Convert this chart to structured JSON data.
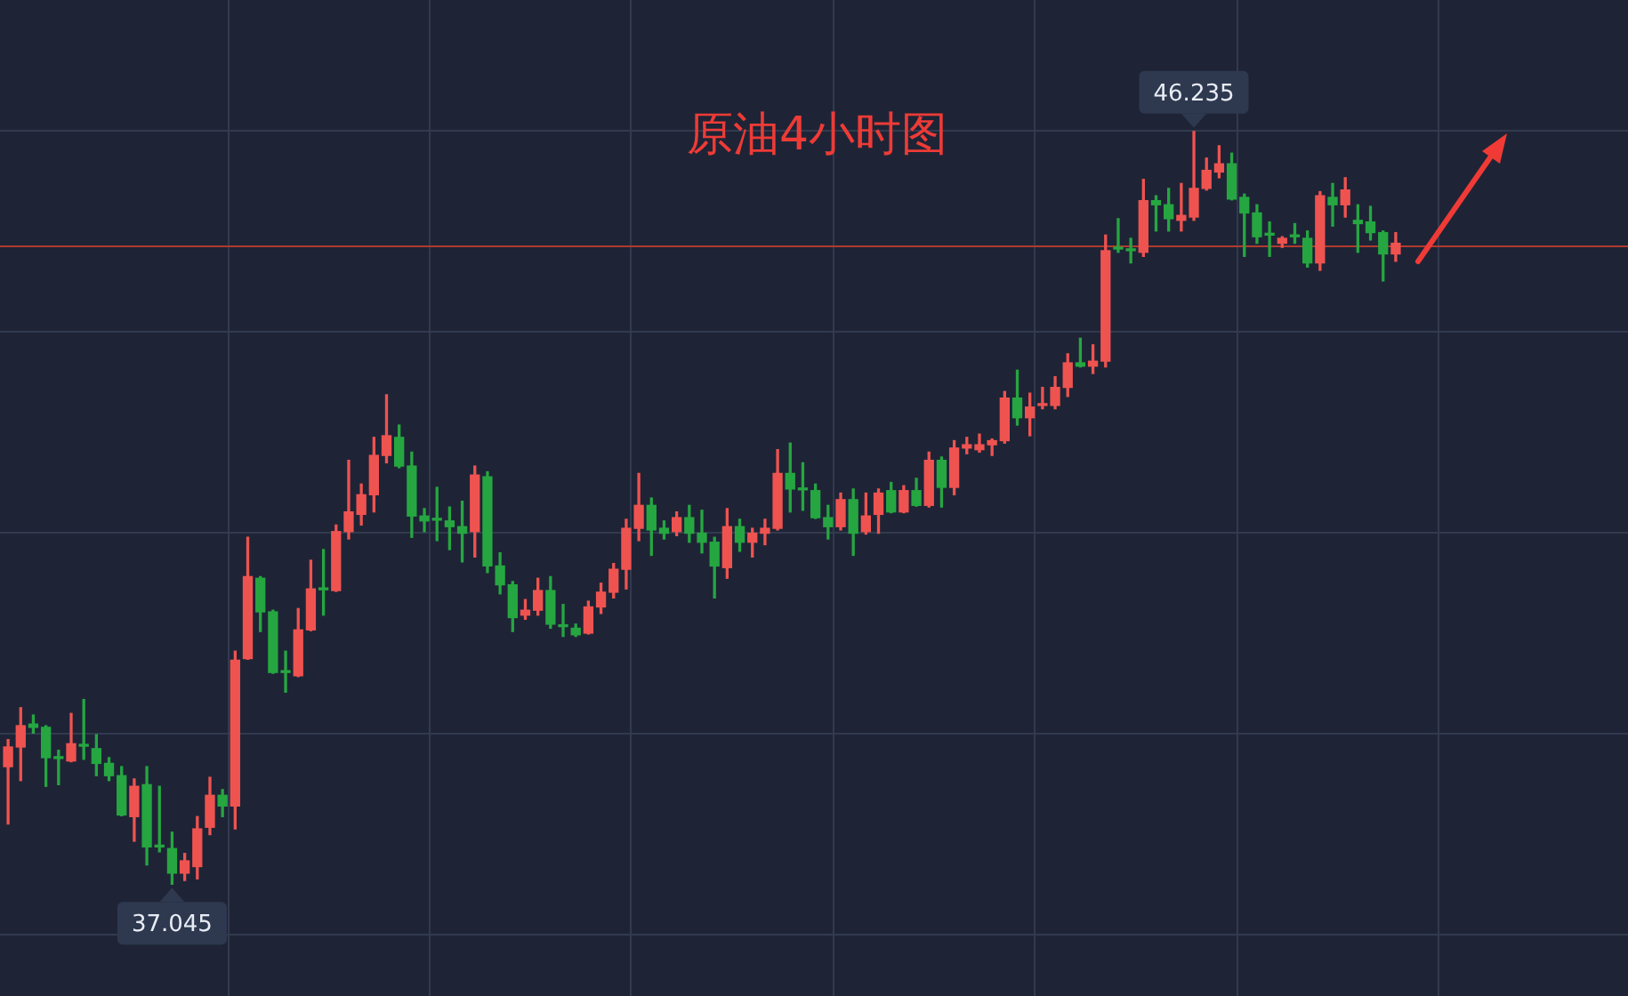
{
  "chart_data": {
    "type": "candlestick",
    "title": "原油4小时图",
    "categories": [
      null,
      null,
      null,
      null,
      null,
      null,
      null,
      null,
      null,
      null,
      null,
      null,
      null,
      null,
      null,
      null,
      null,
      null,
      null,
      null,
      null,
      null,
      null,
      null,
      null,
      null,
      null,
      null,
      null,
      null,
      null,
      null,
      null,
      null,
      null,
      null,
      null,
      null,
      null,
      null,
      null,
      null,
      null,
      null,
      null,
      null,
      null,
      null,
      null,
      null,
      null,
      null,
      null,
      null,
      null,
      null,
      null,
      null,
      null,
      null,
      null,
      null,
      null,
      null,
      null,
      null,
      null,
      null,
      null,
      null,
      null,
      null,
      null,
      null,
      null,
      null,
      null,
      null,
      null,
      null,
      null,
      null,
      null,
      null,
      null,
      null,
      null,
      null,
      null,
      null,
      null,
      null,
      null,
      null,
      null,
      null,
      null,
      null,
      null,
      null,
      null,
      null,
      null,
      null,
      null,
      null,
      null,
      null,
      null,
      null,
      null
    ],
    "ohlc": [
      [
        38.48,
        38.81,
        37.78,
        38.72
      ],
      [
        38.72,
        39.2,
        38.31,
        38.98
      ],
      [
        39.0,
        39.11,
        38.89,
        38.96
      ],
      [
        38.96,
        38.98,
        38.24,
        38.59
      ],
      [
        38.59,
        38.68,
        38.26,
        38.58
      ],
      [
        38.55,
        39.13,
        38.54,
        38.76
      ],
      [
        38.74,
        39.3,
        38.57,
        38.73
      ],
      [
        38.7,
        38.87,
        38.37,
        38.52
      ],
      [
        38.52,
        38.59,
        38.31,
        38.37
      ],
      [
        38.37,
        38.48,
        37.88,
        37.89
      ],
      [
        37.87,
        38.33,
        37.57,
        38.24
      ],
      [
        38.26,
        38.48,
        37.28,
        37.5
      ],
      [
        37.51,
        38.24,
        37.44,
        37.5
      ],
      [
        37.48,
        37.68,
        37.045,
        37.18
      ],
      [
        37.18,
        37.42,
        37.09,
        37.33
      ],
      [
        37.26,
        37.87,
        37.11,
        37.72
      ],
      [
        37.74,
        38.35,
        37.65,
        38.13
      ],
      [
        38.13,
        38.2,
        37.87,
        38.0
      ],
      [
        38.0,
        39.89,
        37.72,
        39.78
      ],
      [
        39.8,
        41.28,
        39.79,
        40.8
      ],
      [
        40.78,
        40.8,
        40.13,
        40.37
      ],
      [
        40.37,
        40.39,
        39.62,
        39.63
      ],
      [
        39.64,
        39.89,
        39.39,
        39.63
      ],
      [
        39.59,
        40.41,
        39.58,
        40.15
      ],
      [
        40.15,
        41.0,
        40.14,
        40.65
      ],
      [
        40.65,
        41.13,
        40.33,
        40.64
      ],
      [
        40.63,
        41.43,
        40.62,
        41.35
      ],
      [
        41.35,
        42.22,
        41.26,
        41.59
      ],
      [
        41.56,
        41.93,
        41.43,
        41.8
      ],
      [
        41.8,
        42.5,
        41.59,
        42.28
      ],
      [
        42.28,
        43.02,
        42.19,
        42.52
      ],
      [
        42.5,
        42.65,
        42.13,
        42.15
      ],
      [
        42.15,
        42.32,
        41.28,
        41.54
      ],
      [
        41.54,
        41.63,
        41.35,
        41.48
      ],
      [
        41.5,
        41.89,
        41.24,
        41.49
      ],
      [
        41.48,
        41.65,
        41.13,
        41.41
      ],
      [
        41.41,
        41.72,
        40.98,
        41.33
      ],
      [
        41.35,
        42.15,
        41.04,
        42.04
      ],
      [
        42.02,
        42.08,
        40.85,
        40.93
      ],
      [
        40.93,
        41.09,
        40.59,
        40.7
      ],
      [
        40.7,
        40.74,
        40.13,
        40.3
      ],
      [
        40.33,
        40.52,
        40.28,
        40.39
      ],
      [
        40.39,
        40.78,
        40.33,
        40.63
      ],
      [
        40.63,
        40.8,
        40.17,
        40.22
      ],
      [
        40.21,
        40.46,
        40.07,
        40.19
      ],
      [
        40.17,
        40.22,
        40.07,
        40.09
      ],
      [
        40.11,
        40.5,
        40.1,
        40.43
      ],
      [
        40.43,
        40.72,
        40.35,
        40.61
      ],
      [
        40.61,
        40.96,
        40.54,
        40.89
      ],
      [
        40.89,
        41.5,
        40.65,
        41.39
      ],
      [
        41.39,
        42.06,
        41.24,
        41.67
      ],
      [
        41.67,
        41.76,
        41.06,
        41.37
      ],
      [
        41.39,
        41.48,
        41.26,
        41.33
      ],
      [
        41.35,
        41.59,
        41.3,
        41.52
      ],
      [
        41.52,
        41.67,
        41.22,
        41.33
      ],
      [
        41.33,
        41.61,
        41.09,
        41.22
      ],
      [
        41.22,
        41.28,
        40.54,
        40.93
      ],
      [
        40.91,
        41.63,
        40.78,
        41.41
      ],
      [
        41.41,
        41.5,
        41.11,
        41.22
      ],
      [
        41.22,
        41.39,
        41.04,
        41.33
      ],
      [
        41.33,
        41.5,
        41.19,
        41.39
      ],
      [
        41.39,
        42.35,
        41.37,
        42.06
      ],
      [
        42.06,
        42.43,
        41.59,
        41.87
      ],
      [
        41.87,
        42.19,
        41.61,
        41.86
      ],
      [
        41.85,
        41.93,
        41.51,
        41.52
      ],
      [
        41.52,
        41.67,
        41.26,
        41.41
      ],
      [
        41.41,
        41.82,
        41.37,
        41.74
      ],
      [
        41.74,
        41.87,
        41.06,
        41.33
      ],
      [
        41.35,
        41.82,
        41.32,
        41.54
      ],
      [
        41.56,
        41.87,
        41.33,
        41.82
      ],
      [
        41.85,
        41.95,
        41.58,
        41.59
      ],
      [
        41.59,
        41.91,
        41.58,
        41.85
      ],
      [
        41.85,
        42.0,
        41.66,
        41.67
      ],
      [
        41.67,
        42.32,
        41.65,
        42.22
      ],
      [
        42.22,
        42.26,
        41.65,
        41.89
      ],
      [
        41.89,
        42.46,
        41.8,
        42.37
      ],
      [
        42.37,
        42.5,
        42.3,
        42.41
      ],
      [
        42.35,
        42.54,
        42.32,
        42.41
      ],
      [
        42.41,
        42.48,
        42.28,
        42.46
      ],
      [
        42.46,
        43.06,
        42.43,
        42.98
      ],
      [
        42.98,
        43.32,
        42.65,
        42.74
      ],
      [
        42.74,
        43.04,
        42.52,
        42.87
      ],
      [
        42.89,
        43.11,
        42.85,
        42.91
      ],
      [
        42.89,
        43.24,
        42.85,
        43.11
      ],
      [
        43.11,
        43.52,
        43.0,
        43.41
      ],
      [
        43.41,
        43.71,
        43.36,
        43.37
      ],
      [
        43.37,
        43.63,
        43.28,
        43.43
      ],
      [
        43.43,
        44.97,
        43.36,
        44.78
      ],
      [
        44.82,
        45.17,
        44.76,
        44.8
      ],
      [
        44.8,
        44.93,
        44.63,
        44.78
      ],
      [
        44.76,
        45.65,
        44.71,
        45.39
      ],
      [
        45.39,
        45.45,
        45.02,
        45.34
      ],
      [
        45.34,
        45.54,
        45.02,
        45.17
      ],
      [
        45.15,
        45.6,
        45.02,
        45.21
      ],
      [
        45.19,
        46.235,
        45.15,
        45.54
      ],
      [
        45.54,
        45.91,
        45.52,
        45.76
      ],
      [
        45.74,
        46.06,
        45.67,
        45.84
      ],
      [
        45.84,
        45.97,
        45.4,
        45.41
      ],
      [
        45.43,
        45.47,
        44.71,
        45.24
      ],
      [
        45.24,
        45.34,
        44.87,
        44.95
      ],
      [
        44.99,
        45.13,
        44.71,
        44.97
      ],
      [
        44.87,
        44.95,
        44.82,
        44.93
      ],
      [
        44.96,
        45.11,
        44.87,
        44.95
      ],
      [
        44.93,
        45.02,
        44.58,
        44.63
      ],
      [
        44.63,
        45.5,
        44.54,
        45.45
      ],
      [
        45.43,
        45.6,
        45.08,
        45.34
      ],
      [
        45.34,
        45.67,
        45.19,
        45.52
      ],
      [
        45.15,
        45.34,
        44.76,
        45.11
      ],
      [
        45.13,
        45.32,
        44.91,
        45.0
      ],
      [
        45.0,
        45.02,
        44.41,
        44.74
      ],
      [
        44.74,
        45.0,
        44.65,
        44.87
      ]
    ],
    "colors": [
      "#ef5350",
      "#ef5350",
      "#26a641",
      "#26a641",
      "#26a641",
      "#ef5350",
      "#26a641",
      "#26a641",
      "#26a641",
      "#26a641",
      "#ef5350",
      "#26a641",
      "#26a641",
      "#26a641",
      "#ef5350",
      "#ef5350",
      "#ef5350",
      "#26a641",
      "#ef5350",
      "#ef5350",
      "#26a641",
      "#26a641",
      "#26a641",
      "#ef5350",
      "#ef5350",
      "#26a641",
      "#ef5350",
      "#ef5350",
      "#ef5350",
      "#ef5350",
      "#ef5350",
      "#26a641",
      "#26a641",
      "#26a641",
      "#26a641",
      "#26a641",
      "#26a641",
      "#ef5350",
      "#26a641",
      "#26a641",
      "#26a641",
      "#ef5350",
      "#ef5350",
      "#26a641",
      "#26a641",
      "#26a641",
      "#ef5350",
      "#ef5350",
      "#ef5350",
      "#ef5350",
      "#ef5350",
      "#26a641",
      "#26a641",
      "#ef5350",
      "#26a641",
      "#26a641",
      "#26a641",
      "#ef5350",
      "#26a641",
      "#ef5350",
      "#ef5350",
      "#ef5350",
      "#26a641",
      "#26a641",
      "#26a641",
      "#26a641",
      "#ef5350",
      "#26a641",
      "#ef5350",
      "#ef5350",
      "#26a641",
      "#ef5350",
      "#26a641",
      "#ef5350",
      "#26a641",
      "#ef5350",
      "#ef5350",
      "#ef5350",
      "#ef5350",
      "#ef5350",
      "#26a641",
      "#ef5350",
      "#ef5350",
      "#ef5350",
      "#ef5350",
      "#26a641",
      "#ef5350",
      "#ef5350",
      "#26a641",
      "#26a641",
      "#ef5350",
      "#26a641",
      "#26a641",
      "#ef5350",
      "#ef5350",
      "#ef5350",
      "#ef5350",
      "#26a641",
      "#26a641",
      "#26a641",
      "#26a641",
      "#ef5350",
      "#26a641",
      "#26a641",
      "#ef5350",
      "#26a641",
      "#ef5350",
      "#26a641",
      "#26a641",
      "#26a641",
      "#ef5350"
    ],
    "ylim": [
      35.68,
      47.84
    ],
    "yticks": [
      {
        "value": 46.26,
        "label": null
      },
      {
        "value": 43.8,
        "label": null
      },
      {
        "value": 41.35,
        "label": null
      },
      {
        "value": 38.89,
        "label": null
      },
      {
        "value": 36.44,
        "label": null
      }
    ],
    "grid": true,
    "tick_labels": false,
    "ref_lines": [
      {
        "axis": "y",
        "value": 44.85,
        "color": "#b03a2e"
      }
    ],
    "annotations": [
      {
        "text": "46.235",
        "y": 46.235
      },
      {
        "text": "37.045",
        "y": 37.045
      }
    ]
  }
}
